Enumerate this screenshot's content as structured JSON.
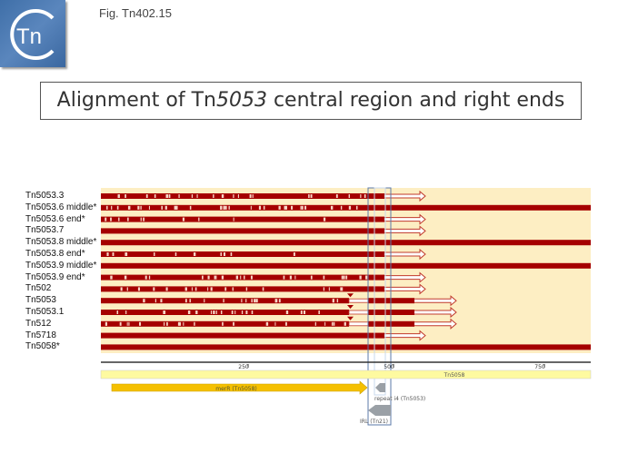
{
  "header": {
    "figure_label": "Fig. Tn402.15",
    "logo_text": "Tn"
  },
  "title": {
    "prefix": "Alignment of Tn",
    "italic": "5053",
    "suffix": " central region and right ends"
  },
  "rows": [
    {
      "label": "Tn5053.3",
      "kind": "arrow"
    },
    {
      "label": "Tn5053.6 middle*",
      "kind": "full"
    },
    {
      "label": "Tn5053.6 end*",
      "kind": "arrow"
    },
    {
      "label": "Tn5053.7",
      "kind": "arrow"
    },
    {
      "label": "Tn5053.8 middle*",
      "kind": "full"
    },
    {
      "label": "Tn5053.8 end*",
      "kind": "arrow"
    },
    {
      "label": "Tn5053.9 middle*",
      "kind": "full"
    },
    {
      "label": "Tn5053.9 end*",
      "kind": "arrow"
    },
    {
      "label": "Tn502",
      "kind": "arrow"
    },
    {
      "label": "Tn5053",
      "kind": "split"
    },
    {
      "label": "Tn5053.1",
      "kind": "split"
    },
    {
      "label": "Tn512",
      "kind": "split"
    },
    {
      "label": "Tn5718",
      "kind": "arrow"
    },
    {
      "label": "Tn5058*",
      "kind": "full"
    }
  ],
  "ruler": {
    "ticks": [
      "250",
      "500",
      "750"
    ]
  },
  "reference": {
    "label": "Tn5058"
  },
  "features": {
    "merR": "merR (Tn5058)",
    "repeat": "repeat i4 (Tn5053)",
    "irl": "IRL (Tn21)"
  },
  "colors": {
    "track_bg": "#fdeec3",
    "bar": "#a50000",
    "reference": "#fefaa0",
    "merR": "#f5c000",
    "feature_gray": "#9aa0a6",
    "box": "#5b79a8"
  }
}
